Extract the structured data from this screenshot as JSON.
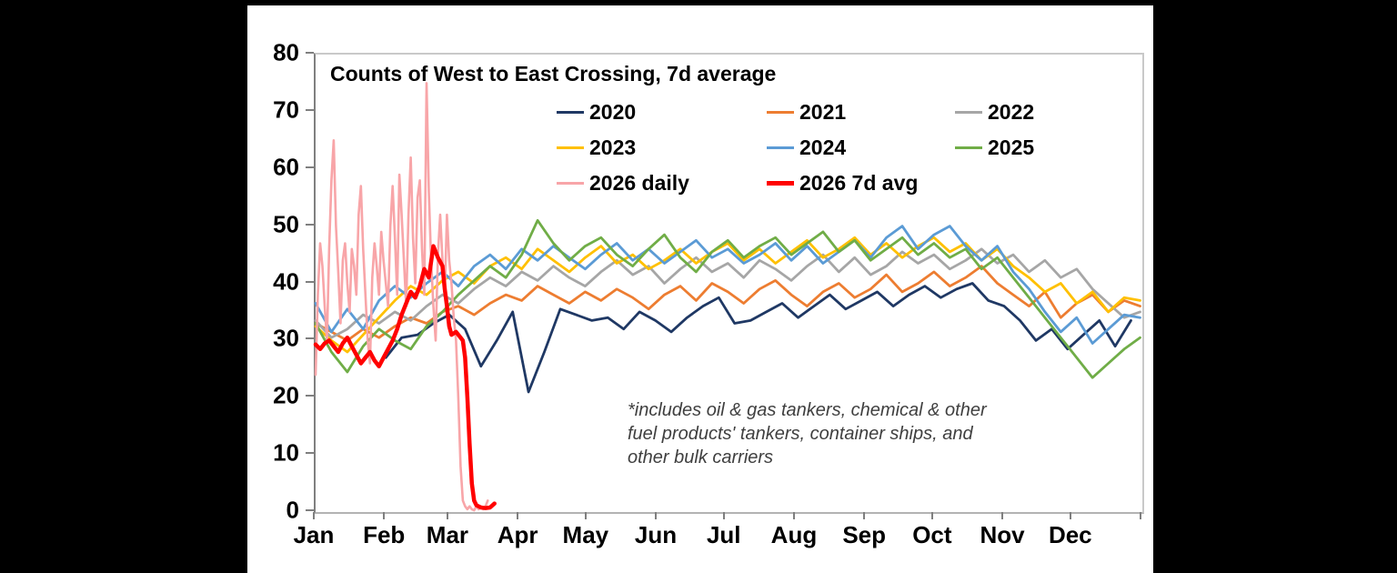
{
  "frame": {
    "background": "#000000",
    "panel_background": "#ffffff"
  },
  "chart_data": {
    "type": "line",
    "title": "Counts of West to East Crossing, 7d average",
    "footnote_lines": [
      "*includes oil & gas tankers, chemical & other",
      "fuel products' tankers, container ships, and",
      "other bulk carriers"
    ],
    "ylim": [
      0,
      80
    ],
    "y_ticks": [
      0,
      10,
      20,
      30,
      40,
      50,
      60,
      70,
      80
    ],
    "x_labels": [
      "Jan",
      "Feb",
      "Mar",
      "Apr",
      "May",
      "Jun",
      "Jul",
      "Aug",
      "Sep",
      "Oct",
      "Nov",
      "Dec"
    ],
    "month_start_days": [
      0,
      31,
      59,
      90,
      120,
      151,
      181,
      212,
      243,
      273,
      304,
      334,
      365
    ],
    "days_in_year": 365,
    "legend_position": "top-inside",
    "grid": false,
    "series": [
      {
        "name": "2020",
        "color": "#1F3864",
        "width": 2.8,
        "start_day": 32,
        "step": 7,
        "values": [
          27,
          30.5,
          31,
          33,
          34.5,
          32,
          25.5,
          30,
          35,
          21,
          28,
          35.5,
          34.5,
          33.5,
          34,
          32,
          35,
          33.5,
          31.5,
          34,
          36,
          37.5,
          33,
          33.5,
          35,
          36.5,
          34,
          36,
          38,
          35.5,
          37,
          38.5,
          36,
          38,
          39.5,
          37.5,
          39,
          40,
          37,
          36,
          33.5,
          30,
          32,
          28.5,
          31,
          33.5,
          29,
          33.5
        ]
      },
      {
        "name": "2021",
        "color": "#ED7D31",
        "width": 2.8,
        "start_day": 1,
        "step": 7,
        "values": [
          33,
          31.5,
          30,
          32,
          30.5,
          32.5,
          34,
          33,
          35,
          36,
          34.5,
          36.5,
          38,
          37,
          39.5,
          38,
          36.5,
          38.5,
          37,
          39,
          37.5,
          35.5,
          38,
          39.5,
          37,
          40,
          38.5,
          36.5,
          39,
          40.5,
          38,
          36,
          38.5,
          40,
          37.5,
          39,
          41.5,
          38.5,
          40,
          42,
          39.5,
          41,
          43,
          40,
          38,
          36,
          38.5,
          34,
          36.5,
          38,
          35,
          37,
          36
        ]
      },
      {
        "name": "2022",
        "color": "#A6A6A6",
        "width": 2.8,
        "start_day": 1,
        "step": 7,
        "values": [
          33.5,
          30.5,
          32,
          34.5,
          33,
          35,
          33.5,
          36,
          38,
          36.5,
          39,
          41,
          39.5,
          42,
          40.5,
          43,
          41,
          39.5,
          42,
          44,
          41.5,
          43,
          40,
          42.5,
          44.5,
          42,
          43.5,
          41,
          44,
          42.5,
          40.5,
          43,
          45,
          42,
          44.5,
          41.5,
          43,
          45.5,
          43.5,
          45,
          42.5,
          44,
          46,
          43.5,
          45,
          42,
          44,
          41,
          42.5,
          39,
          36.5,
          34,
          35
        ]
      },
      {
        "name": "2023",
        "color": "#FFC000",
        "width": 2.8,
        "start_day": 1,
        "step": 7,
        "values": [
          32.5,
          30,
          28,
          31,
          34,
          37,
          39.5,
          38,
          40.5,
          42,
          40,
          43,
          44.5,
          42.5,
          46,
          44,
          42,
          44.5,
          46.5,
          43.5,
          45,
          42.5,
          44,
          46,
          43.5,
          45.5,
          47,
          44,
          46,
          43.5,
          45.5,
          47.5,
          44.5,
          46,
          48,
          45,
          47,
          44.5,
          46.5,
          48,
          45.5,
          47,
          44,
          46,
          43,
          41,
          38.5,
          40,
          36.5,
          38.5,
          35,
          37.5,
          37
        ]
      },
      {
        "name": "2024",
        "color": "#5B9BD5",
        "width": 2.8,
        "start_day": 1,
        "step": 7,
        "values": [
          36.5,
          31.5,
          35.5,
          32,
          37,
          39.5,
          37.5,
          40,
          42,
          39.5,
          43,
          45,
          42.5,
          46,
          44,
          46.5,
          44.5,
          42.5,
          45,
          47,
          44,
          46,
          43.5,
          45.5,
          47.5,
          44.5,
          46,
          43.5,
          45,
          47,
          44,
          46.5,
          43.5,
          45.5,
          47.5,
          44.5,
          48,
          50,
          46,
          48.5,
          50,
          46.5,
          44,
          46.5,
          42,
          39,
          35,
          31.5,
          34,
          29.5,
          32,
          34.5,
          34
        ]
      },
      {
        "name": "2025",
        "color": "#70AD47",
        "width": 2.8,
        "start_day": 1,
        "step": 7,
        "values": [
          33,
          28,
          24.5,
          29,
          32,
          30,
          28.5,
          32.5,
          35,
          38,
          40.5,
          43,
          41,
          45,
          51,
          47,
          44,
          46.5,
          48,
          45,
          43,
          46,
          48.5,
          44.5,
          42,
          45.5,
          47.5,
          44.5,
          46.5,
          48,
          45,
          47,
          49,
          45.5,
          47.5,
          44,
          46,
          48,
          45,
          47,
          44.5,
          46,
          42.5,
          44.5,
          41,
          37.5,
          34,
          30.5,
          27,
          23.5,
          26,
          28.5,
          30.5
        ]
      },
      {
        "name": "2026 daily",
        "color": "#F8A5A8",
        "width": 2.6,
        "start_day": 1,
        "step": 1,
        "values": [
          24,
          38,
          47,
          43,
          36,
          30,
          46,
          58,
          65,
          50,
          42,
          33,
          44,
          47,
          40,
          35,
          46,
          43,
          38,
          52,
          57,
          46,
          38,
          30,
          26,
          41,
          47,
          43,
          38,
          49,
          44,
          40,
          36,
          50,
          57,
          48,
          38,
          59,
          52,
          44,
          36,
          52,
          62,
          48,
          40,
          55,
          58,
          46,
          38,
          75,
          56,
          44,
          36,
          30,
          45,
          52,
          44,
          38,
          52,
          44,
          40,
          34,
          30,
          20,
          8,
          2,
          1,
          0.5,
          1,
          0.5,
          0.3,
          1,
          0.5,
          1,
          0.5,
          1,
          2
        ]
      },
      {
        "name": "2026 7d avg",
        "color": "#FF0000",
        "width": 4.5,
        "days": [
          1,
          3,
          5,
          7,
          9,
          11,
          13,
          15,
          17,
          19,
          21,
          23,
          25,
          27,
          29,
          31,
          33,
          35,
          37,
          39,
          41,
          43,
          45,
          47,
          49,
          51,
          53,
          55,
          57,
          58,
          59,
          60,
          61,
          63,
          65,
          66,
          67,
          68,
          69,
          70,
          71,
          72,
          74,
          76,
          78,
          80
        ],
        "values": [
          29.3,
          28.5,
          29.5,
          30,
          29,
          28,
          29.5,
          30.5,
          29,
          27.5,
          26,
          27,
          28,
          26.5,
          25.5,
          27,
          28.5,
          30,
          32,
          34.5,
          36.5,
          38.5,
          37.5,
          39.5,
          42.5,
          41,
          46.5,
          44.5,
          43,
          39,
          36,
          32.5,
          31,
          31.5,
          30.5,
          30,
          27,
          20,
          12,
          5,
          2,
          1.2,
          0.8,
          0.7,
          0.8,
          1.5
        ]
      }
    ]
  }
}
